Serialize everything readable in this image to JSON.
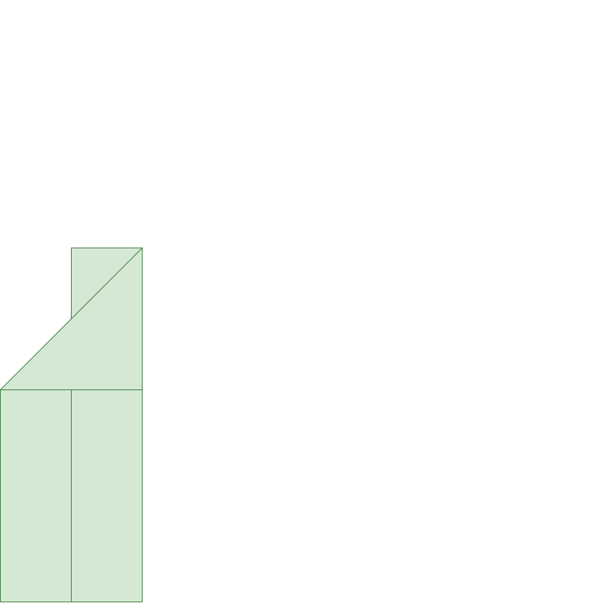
{
  "diagram": {
    "fill_color": "#d5e8d4",
    "stroke_color": "#3a7a3d",
    "background_color": "#ffffff",
    "shapes": [
      {
        "name": "tall-rectangle",
        "kind": "rect"
      },
      {
        "name": "lower-left-rectangle",
        "kind": "rect"
      },
      {
        "name": "upper-left-triangle",
        "kind": "triangle"
      }
    ]
  }
}
